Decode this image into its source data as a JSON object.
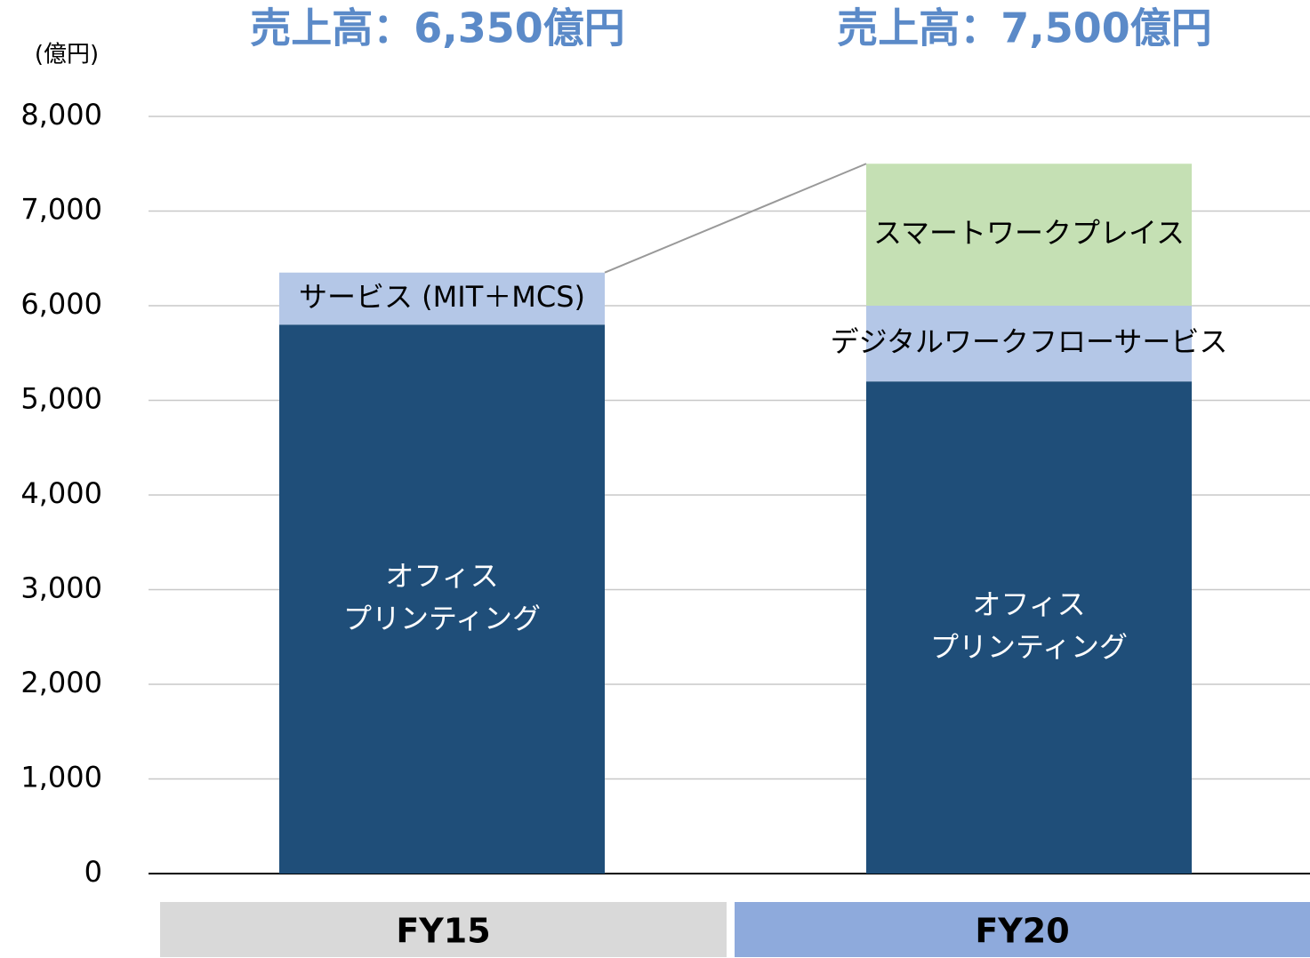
{
  "chart_data": {
    "type": "stacked_bar",
    "unit_label": "(億円)",
    "categories": [
      "FY15",
      "FY20"
    ],
    "category_colors": [
      "#d9d9d9",
      "#8eaadc"
    ],
    "totals_labels": [
      "売上高：6,350億円",
      "売上高：7,500億円"
    ],
    "totals_color": "#5b8ac8",
    "series": [
      {
        "color": "#1f4e79",
        "text_color": "#ffffff",
        "values": [
          5800,
          5200
        ],
        "labels": [
          [
            "オフィス",
            "プリンティング"
          ],
          [
            "オフィス",
            "プリンティング"
          ]
        ]
      },
      {
        "color": "#b4c7e7",
        "text_color": "#000000",
        "values": [
          550,
          800
        ],
        "labels": [
          [
            "サービス (MIT＋MCS)"
          ],
          [
            "デジタルワークフローサービス"
          ]
        ]
      },
      {
        "color": "#c5e0b4",
        "text_color": "#000000",
        "values": [
          null,
          1500
        ],
        "labels": [
          null,
          [
            "スマートワークプレイス"
          ]
        ]
      }
    ],
    "ylim": [
      0,
      8000
    ],
    "yticks": [
      0,
      {
        "value": 1000,
        "label": "1,000"
      },
      {
        "value": 2000,
        "label": "2,000"
      },
      {
        "value": 3000,
        "label": "3,000"
      },
      {
        "value": 4000,
        "label": "4,000"
      },
      {
        "value": 5000,
        "label": "5,000"
      },
      {
        "value": 6000,
        "label": "6,000"
      },
      {
        "value": 7000,
        "label": "7,000"
      },
      {
        "value": 8000,
        "label": "8,000"
      }
    ],
    "grid": true
  }
}
